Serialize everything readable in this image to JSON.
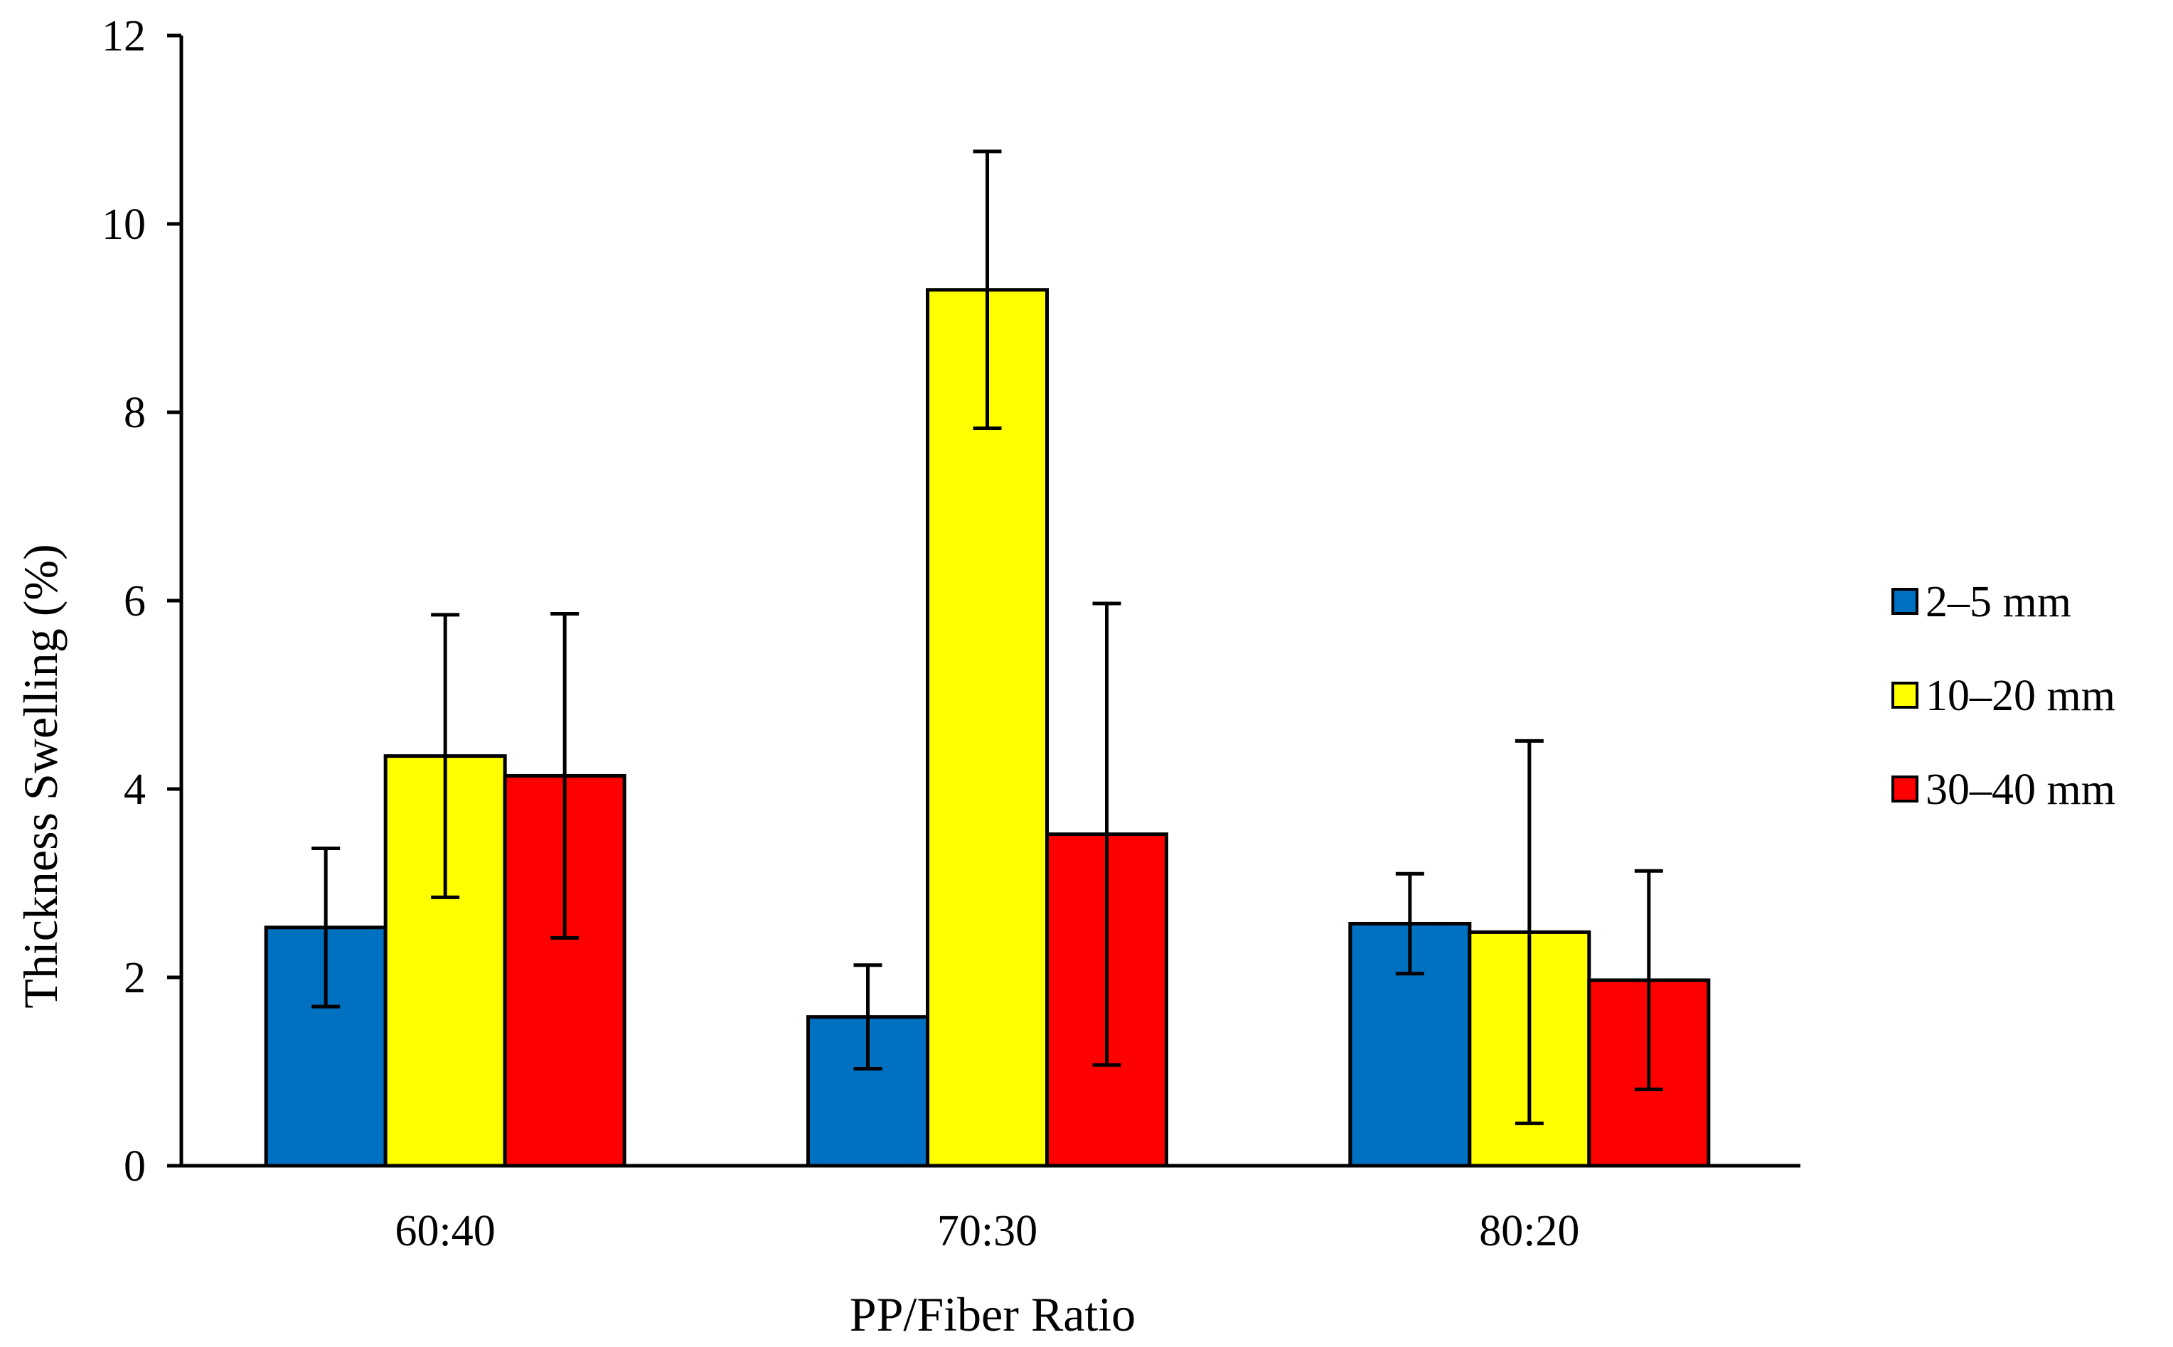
{
  "chart_data": {
    "type": "bar",
    "title": "",
    "xlabel": "PP/Fiber Ratio",
    "ylabel": "Thickness Swelling (%)",
    "ylim": [
      0,
      12
    ],
    "yticks": [
      0,
      2,
      4,
      6,
      8,
      10,
      12
    ],
    "categories": [
      "60:40",
      "70:30",
      "80:20"
    ],
    "series": [
      {
        "name": "2–5 mm",
        "color": "#0070C0",
        "values": [
          2.53,
          1.58,
          2.57
        ],
        "error": [
          0.84,
          0.55,
          0.53
        ]
      },
      {
        "name": "10–20 mm",
        "color": "#FFFF00",
        "values": [
          4.35,
          9.3,
          2.48
        ],
        "error": [
          1.5,
          1.47,
          2.03
        ]
      },
      {
        "name": "30–40 mm",
        "color": "#FF0000",
        "values": [
          4.14,
          3.52,
          1.97
        ],
        "error": [
          1.72,
          2.45,
          1.16
        ]
      }
    ],
    "grid": false,
    "legend": "right"
  }
}
